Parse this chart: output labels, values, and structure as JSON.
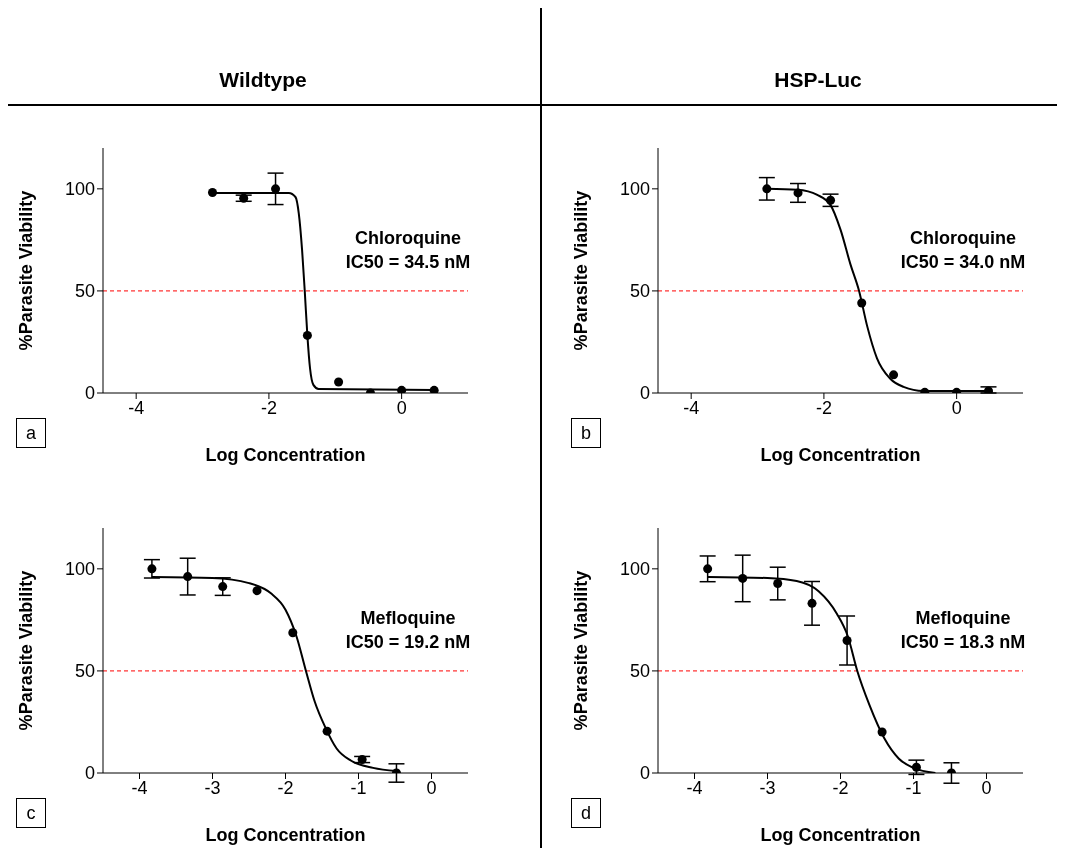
{
  "chart_data": [
    {
      "type": "scatter",
      "title": "Wildtype",
      "xlabel": "Log Concentration",
      "ylabel": "%Parasite Viability",
      "xlim": [
        -4.5,
        1
      ],
      "xticks": [
        -4,
        -2,
        0
      ],
      "ylim": [
        0,
        120
      ],
      "yticks": [
        0,
        50,
        100
      ],
      "series": [
        {
          "type": "scatter",
          "marker": "circle",
          "color": "#000000",
          "x": [
            -2.85,
            -2.38,
            -1.9,
            -1.42,
            -0.95,
            -0.47,
            0,
            0.49
          ],
          "values": [
            98.2,
            95.4,
            100,
            28.2,
            5.4,
            0,
            1.3,
            1.3
          ],
          "errors": [
            null,
            1.5,
            7.7,
            null,
            null,
            null,
            null,
            null
          ]
        },
        {
          "type": "line",
          "marker": "none",
          "color": "#000000",
          "x": [
            -2.85,
            -1.7,
            -1.6,
            -1.55,
            -1.5,
            -1.46,
            -1.42,
            -1.38,
            -1.33,
            -1.25,
            0.49
          ],
          "values": [
            98,
            98,
            96,
            88,
            70,
            50,
            28,
            12,
            4,
            2,
            1.5
          ]
        }
      ],
      "ref_lines": [
        {
          "axis": "y",
          "value": 50,
          "color": "#ff0000",
          "line_style": "dashed"
        }
      ],
      "annotations": [
        "Chloroquine",
        "IC50 = 34.5 nM",
        "a"
      ]
    },
    {
      "type": "scatter",
      "title": "HSP-Luc",
      "xlabel": "Log Concentration",
      "ylabel": "%Parasite Viability",
      "xlim": [
        -4.5,
        1
      ],
      "xticks": [
        -4,
        -2,
        0
      ],
      "ylim": [
        0,
        120
      ],
      "yticks": [
        0,
        50,
        100
      ],
      "series": [
        {
          "type": "scatter",
          "marker": "circle",
          "color": "#000000",
          "x": [
            -2.86,
            -2.39,
            -1.9,
            -1.43,
            -0.95,
            -0.48,
            0,
            0.48
          ],
          "values": [
            100,
            98,
            94.4,
            44.1,
            8.9,
            0.3,
            0.3,
            1
          ],
          "errors": [
            5.5,
            4.6,
            3,
            null,
            null,
            null,
            null,
            [
              0,
              3
            ]
          ]
        },
        {
          "type": "line",
          "marker": "none",
          "color": "#000000",
          "x": [
            -2.86,
            -2.4,
            -2.1,
            -1.9,
            -1.75,
            -1.6,
            -1.47,
            -1.35,
            -1.2,
            -1,
            -0.8,
            -0.5,
            0.48
          ],
          "values": [
            100,
            99.5,
            97,
            92,
            80,
            63,
            50,
            33,
            17,
            7,
            3,
            1,
            1
          ]
        }
      ],
      "ref_lines": [
        {
          "axis": "y",
          "value": 50,
          "color": "#ff0000",
          "line_style": "dashed"
        }
      ],
      "annotations": [
        "Chloroquine",
        "IC50 = 34.0 nM",
        "b"
      ]
    },
    {
      "type": "scatter",
      "xlabel": "Log Concentration",
      "ylabel": "%Parasite Viability",
      "xlim": [
        -4.5,
        0.5
      ],
      "xticks": [
        -4,
        -3,
        -2,
        -1,
        0
      ],
      "ylim": [
        0,
        120
      ],
      "yticks": [
        0,
        50,
        100
      ],
      "series": [
        {
          "type": "scatter",
          "marker": "circle",
          "color": "#000000",
          "x": [
            -3.83,
            -3.34,
            -2.86,
            -2.39,
            -1.9,
            -1.43,
            -0.95,
            -0.48
          ],
          "values": [
            100,
            96.2,
            91.3,
            89.3,
            68.7,
            20.5,
            6.6,
            0
          ],
          "errors": [
            4.5,
            9,
            4.3,
            null,
            null,
            null,
            1.5,
            4.5
          ]
        },
        {
          "type": "line",
          "marker": "none",
          "color": "#000000",
          "x": [
            -3.83,
            -3,
            -2.5,
            -2.2,
            -2,
            -1.85,
            -1.72,
            -1.6,
            -1.45,
            -1.3,
            -1.1,
            -0.8,
            -0.48
          ],
          "values": [
            96,
            95.5,
            93,
            88,
            80,
            67,
            50,
            35,
            22,
            12,
            6,
            2.5,
            1
          ]
        }
      ],
      "ref_lines": [
        {
          "axis": "y",
          "value": 50,
          "color": "#ff0000",
          "line_style": "dashed"
        }
      ],
      "annotations": [
        "Mefloquine",
        "IC50 = 19.2 nM",
        "c"
      ]
    },
    {
      "type": "scatter",
      "xlabel": "Log Concentration",
      "ylabel": "%Parasite Viability",
      "xlim": [
        -4.5,
        0.5
      ],
      "xticks": [
        -4,
        -3,
        -2,
        -1,
        0
      ],
      "ylim": [
        0,
        120
      ],
      "yticks": [
        0,
        50,
        100
      ],
      "series": [
        {
          "type": "scatter",
          "marker": "circle",
          "color": "#000000",
          "x": [
            -3.82,
            -3.34,
            -2.86,
            -2.39,
            -1.91,
            -1.43,
            -0.96,
            -0.48
          ],
          "values": [
            100,
            95.3,
            92.8,
            83.1,
            64.9,
            20.1,
            2.8,
            0
          ],
          "errors": [
            6.3,
            11.4,
            8,
            10.7,
            12,
            null,
            3.5,
            5
          ]
        },
        {
          "type": "line",
          "marker": "none",
          "color": "#000000",
          "x": [
            -3.82,
            -3,
            -2.6,
            -2.3,
            -2.05,
            -1.9,
            -1.77,
            -1.6,
            -1.4,
            -1.2,
            -1,
            -0.7
          ],
          "values": [
            96,
            95.5,
            94,
            89,
            78,
            67,
            50,
            33,
            17,
            7,
            2.5,
            0
          ]
        }
      ],
      "ref_lines": [
        {
          "axis": "y",
          "value": 50,
          "color": "#ff0000",
          "line_style": "dashed"
        }
      ],
      "annotations": [
        "Mefloquine",
        "IC50 = 18.3 nM",
        "d"
      ]
    }
  ]
}
